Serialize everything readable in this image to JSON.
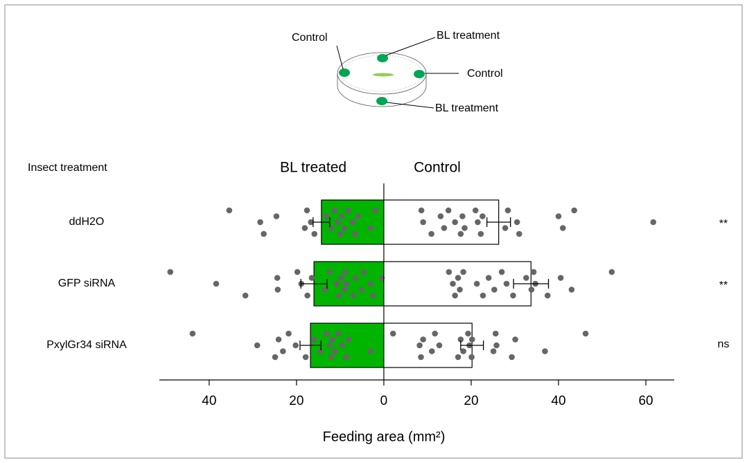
{
  "chart_data": {
    "type": "bar",
    "orientation": "horizontal",
    "header": "Insect treatment",
    "annotations": [
      "Control",
      "BL treatment",
      "Control",
      "BL treatment"
    ],
    "categories": [
      "ddH2O",
      "GFP siRNA",
      "PxylGr34 siRNA"
    ],
    "significance": [
      "**",
      "**",
      "ns"
    ],
    "series": [
      {
        "name": "BL treated",
        "color": "#00b400",
        "point_color": "#666666",
        "values": [
          -14.3,
          -16.0,
          -16.8
        ],
        "errors": [
          1.9,
          3.0,
          2.4
        ],
        "points": [
          [
            -35.4,
            -28.3,
            -27.5,
            -24.6,
            -18.1,
            -17.6,
            -16.7,
            -15.9,
            -13.2,
            -12.0,
            -11.3,
            -10.6,
            -10.0,
            -9.7,
            -9.0,
            -8.2,
            -7.1,
            -6.6,
            -5.9,
            -3.0,
            -2.0
          ],
          [
            -48.9,
            -38.4,
            -31.7,
            -24.4,
            -24.3,
            -19.8,
            -18.9,
            -17.5,
            -16.5,
            -13.5,
            -12.4,
            -10.8,
            -10.3,
            -9.8,
            -9.0,
            -8.8,
            -8.6,
            -7.0,
            -6.5,
            -5.1,
            -4.6,
            -3.0,
            -2.5,
            -0.5
          ],
          [
            -43.8,
            -29.0,
            -24.9,
            -24.1,
            -23.1,
            -21.8,
            -20.2,
            -17.9,
            -16.0,
            -14.6,
            -13.1,
            -12.4,
            -12.0,
            -11.8,
            -11.2,
            -10.4,
            -9.6,
            -8.6,
            -8.1,
            -3.0
          ]
        ]
      },
      {
        "name": "Control",
        "color": "#ffffff",
        "point_color": "#666666",
        "values": [
          26.3,
          33.7,
          20.2
        ],
        "errors": [
          2.7,
          4.0,
          2.6
        ],
        "points": [
          [
            8.6,
            9.0,
            10.9,
            13.0,
            13.8,
            14.8,
            16.3,
            17.6,
            18.0,
            18.5,
            21.0,
            21.5,
            22.2,
            22.6,
            27.8,
            28.4,
            30.5,
            31.0,
            40.0,
            41.0,
            43.6,
            61.7
          ],
          [
            14.9,
            15.8,
            16.3,
            17.0,
            17.4,
            18.2,
            21.3,
            22.7,
            24.0,
            25.3,
            27.0,
            28.1,
            29.6,
            32.6,
            33.8,
            34.3,
            34.7,
            37.5,
            40.5,
            43.0,
            52.2
          ],
          [
            2.1,
            8.2,
            8.5,
            9.0,
            11.0,
            11.7,
            12.7,
            17.0,
            17.6,
            18.2,
            19.3,
            19.6,
            20.1,
            20.2,
            25.1,
            25.6,
            25.8,
            29.3,
            30.1,
            36.9,
            46.2
          ]
        ]
      }
    ],
    "xlabel": "Feeding area (mm²)",
    "xlim": [
      -51.4,
      66.5
    ],
    "xticks": [
      {
        "value": -40,
        "label": "40"
      },
      {
        "value": -20,
        "label": "20"
      },
      0,
      20,
      40,
      60
    ]
  }
}
